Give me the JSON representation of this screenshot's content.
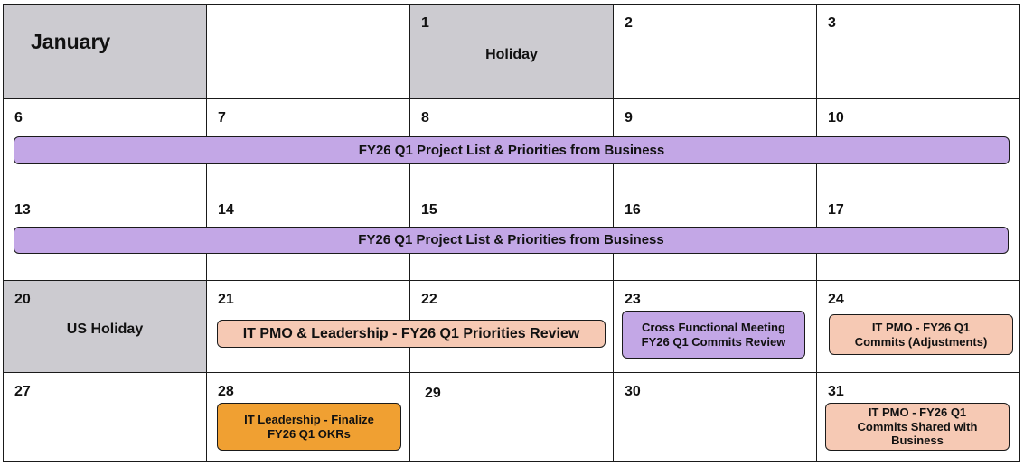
{
  "month": "January",
  "weeks": [
    [
      {
        "num": "",
        "label": ""
      },
      {
        "num": "",
        "label": ""
      },
      {
        "num": "1",
        "label": "Holiday"
      },
      {
        "num": "2",
        "label": ""
      },
      {
        "num": "3",
        "label": ""
      }
    ],
    [
      {
        "num": "6"
      },
      {
        "num": "7"
      },
      {
        "num": "8"
      },
      {
        "num": "9"
      },
      {
        "num": "10"
      }
    ],
    [
      {
        "num": "13"
      },
      {
        "num": "14"
      },
      {
        "num": "15"
      },
      {
        "num": "16"
      },
      {
        "num": "17"
      }
    ],
    [
      {
        "num": "20",
        "label": "US Holiday"
      },
      {
        "num": "21"
      },
      {
        "num": "22"
      },
      {
        "num": "23"
      },
      {
        "num": "24"
      }
    ],
    [
      {
        "num": "27"
      },
      {
        "num": "28"
      },
      {
        "num": "29"
      },
      {
        "num": "30"
      },
      {
        "num": "31"
      }
    ]
  ],
  "events": {
    "week2_span": "FY26 Q1 Project List & Priorities from Business",
    "week3_span": "FY26 Q1 Project List & Priorities from Business",
    "it_pmo_leadership": "IT PMO & Leadership - FY26 Q1 Priorities Review",
    "cross_functional": "Cross Functional Meeting\nFY26 Q1 Commits Review",
    "it_pmo_adjustments": "IT PMO - FY26 Q1\nCommits (Adjustments)",
    "it_leadership_finalize": "IT Leadership - Finalize\nFY26 Q1 OKRs",
    "it_pmo_shared": "IT PMO - FY26 Q1\nCommits Shared with\nBusiness"
  },
  "colors": {
    "event_purple": "#c3a7e6",
    "event_peach": "#f6c9b4",
    "event_orange": "#f0a032",
    "holiday_gray": "#cccbd0"
  }
}
